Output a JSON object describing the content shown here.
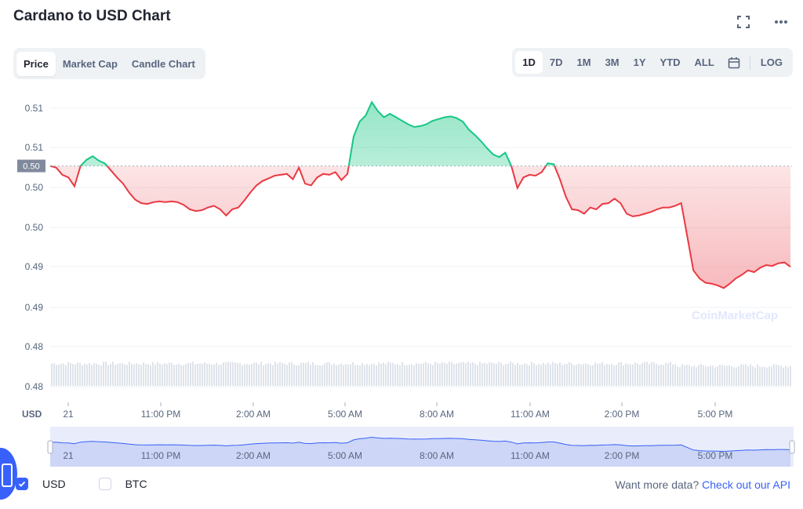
{
  "title": "Cardano to USD Chart",
  "icons": {
    "fullscreen": "fullscreen-icon",
    "more": "more-horizontal-icon",
    "calendar": "calendar-icon"
  },
  "tabs": [
    {
      "label": "Price",
      "active": true
    },
    {
      "label": "Market Cap",
      "active": false
    },
    {
      "label": "Candle Chart",
      "active": false
    }
  ],
  "ranges": [
    {
      "label": "1D",
      "active": true
    },
    {
      "label": "7D",
      "active": false
    },
    {
      "label": "1M",
      "active": false
    },
    {
      "label": "3M",
      "active": false
    },
    {
      "label": "1Y",
      "active": false
    },
    {
      "label": "YTD",
      "active": false
    },
    {
      "label": "ALL",
      "active": false
    }
  ],
  "log_label": "LOG",
  "colors": {
    "up": "#16c784",
    "down": "#ea3943",
    "accent": "#3861fb",
    "text_muted": "#58667e"
  },
  "chart_data": {
    "type": "line",
    "ylabel": "",
    "y_unit_label": "USD",
    "y_ticks": [
      "0.51",
      "0.51",
      "0.50",
      "0.50",
      "0.49",
      "0.49",
      "0.48",
      "0.48"
    ],
    "x_ticks": [
      "21",
      "11:00 PM",
      "2:00 AM",
      "5:00 AM",
      "8:00 AM",
      "11:00 AM",
      "2:00 PM",
      "5:00 PM"
    ],
    "reference_label": "0.50",
    "reference_value": 0.5035,
    "ylim": [
      0.4775,
      0.5125
    ],
    "watermark": "CoinMarketCap",
    "series": [
      {
        "values": [
          0.5035,
          0.5033,
          0.5025,
          0.5022,
          0.5012,
          0.5035,
          0.5042,
          0.5046,
          0.5041,
          0.5038,
          0.503,
          0.5022,
          0.5015,
          0.5005,
          0.4997,
          0.4993,
          0.4992,
          0.4994,
          0.4995,
          0.4994,
          0.4995,
          0.4994,
          0.4991,
          0.4986,
          0.4984,
          0.4985,
          0.4988,
          0.499,
          0.4986,
          0.4979,
          0.4986,
          0.4988,
          0.4996,
          0.5005,
          0.5013,
          0.5018,
          0.5021,
          0.5024,
          0.5025,
          0.5026,
          0.502,
          0.5033,
          0.5015,
          0.5013,
          0.5022,
          0.5026,
          0.5025,
          0.5028,
          0.5019,
          0.5026,
          0.5068,
          0.5085,
          0.5092,
          0.5107,
          0.5097,
          0.509,
          0.5094,
          0.509,
          0.5086,
          0.5082,
          0.5079,
          0.508,
          0.5082,
          0.5086,
          0.5088,
          0.509,
          0.5091,
          0.5089,
          0.5085,
          0.5076,
          0.507,
          0.5063,
          0.5055,
          0.5048,
          0.5045,
          0.505,
          0.5035,
          0.501,
          0.5022,
          0.5025,
          0.5024,
          0.5028,
          0.5038,
          0.5037,
          0.502,
          0.5,
          0.4986,
          0.4985,
          0.4981,
          0.4988,
          0.4986,
          0.4992,
          0.4993,
          0.4998,
          0.4993,
          0.4981,
          0.4978,
          0.4979,
          0.4981,
          0.4983,
          0.4986,
          0.4988,
          0.4988,
          0.499,
          0.4993,
          0.4955,
          0.4917,
          0.4908,
          0.4903,
          0.4902,
          0.49,
          0.4897,
          0.4902,
          0.4908,
          0.4912,
          0.4917,
          0.4915,
          0.492,
          0.4923,
          0.4922,
          0.4925,
          0.4926,
          0.4921
        ]
      }
    ],
    "volume_bars": true
  },
  "navigator": {
    "x_ticks": [
      "21",
      "11:00 PM",
      "2:00 AM",
      "5:00 AM",
      "8:00 AM",
      "11:00 AM",
      "2:00 PM",
      "5:00 PM"
    ]
  },
  "footer": {
    "checkboxes": [
      {
        "label": "USD",
        "checked": true
      },
      {
        "label": "BTC",
        "checked": false
      }
    ],
    "more_text": "Want more data?",
    "more_link": "Check out our API"
  }
}
